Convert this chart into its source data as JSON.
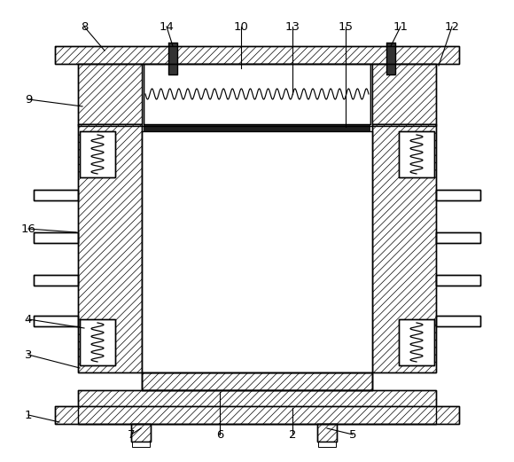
{
  "bg_color": "#ffffff",
  "black": "#000000",
  "white": "#ffffff",
  "dark_gray": "#2a2a2a",
  "fig_width": 5.8,
  "fig_height": 5.21,
  "dpi": 100,
  "hatch": "////",
  "lw": 1.0,
  "spring_lw": 0.9,
  "labels_top": [
    [
      "8",
      95,
      22
    ],
    [
      "14",
      185,
      22
    ],
    [
      "10",
      272,
      22
    ],
    [
      "13",
      330,
      22
    ],
    [
      "15",
      388,
      22
    ],
    [
      "11",
      455,
      22
    ],
    [
      "12",
      510,
      22
    ]
  ],
  "labels_left": [
    [
      "9",
      32,
      118
    ],
    [
      "16",
      32,
      262
    ],
    [
      "4",
      32,
      368
    ],
    [
      "3",
      32,
      408
    ]
  ],
  "labels_bottom": [
    [
      "1",
      32,
      468
    ],
    [
      "7",
      148,
      490
    ],
    [
      "6",
      248,
      490
    ],
    [
      "2",
      330,
      490
    ],
    [
      "5",
      398,
      490
    ]
  ]
}
